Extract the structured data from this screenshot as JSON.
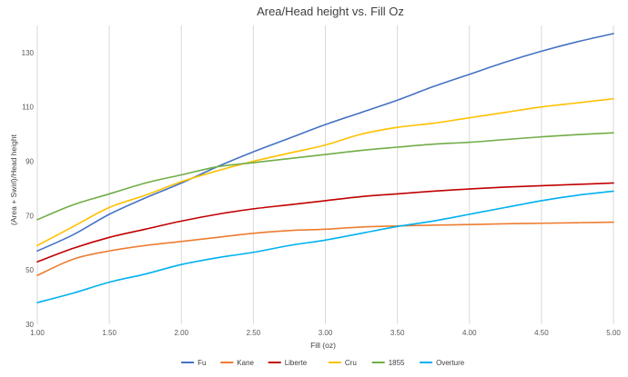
{
  "chart_data": {
    "type": "line",
    "title": "Area/Head height vs. Fill Oz",
    "xlabel": "Fill (oz)",
    "ylabel": "(Area + Swirl)/Head height",
    "xlim": [
      1.0,
      5.0
    ],
    "ylim": [
      30,
      140
    ],
    "x_ticks": [
      "1.00",
      "1.50",
      "2.00",
      "2.50",
      "3.00",
      "3.50",
      "4.00",
      "4.50",
      "5.00"
    ],
    "y_ticks": [
      "30",
      "50",
      "70",
      "90",
      "110",
      "130"
    ],
    "grid": "vertical",
    "legend_position": "bottom",
    "x": [
      1.0,
      1.25,
      1.5,
      1.75,
      2.0,
      2.25,
      2.5,
      2.75,
      3.0,
      3.25,
      3.5,
      3.75,
      4.0,
      4.25,
      4.5,
      4.75,
      5.0
    ],
    "series": [
      {
        "name": "Fu",
        "color": "#4472C4",
        "values": [
          57,
          63,
          70.5,
          76.5,
          82,
          88,
          93.5,
          98.5,
          103.5,
          108,
          112.5,
          117.5,
          122,
          126.5,
          130.5,
          134,
          137
        ]
      },
      {
        "name": "Kane",
        "color": "#ED7D31",
        "values": [
          48,
          54,
          57,
          59,
          60.5,
          62,
          63.5,
          64.5,
          65,
          65.8,
          66.2,
          66.5,
          66.7,
          67,
          67.2,
          67.4,
          67.6
        ]
      },
      {
        "name": "Liberte",
        "color": "#C00000",
        "values": [
          53,
          58,
          62,
          65,
          68,
          70.5,
          72.5,
          74,
          75.5,
          77,
          78,
          79,
          79.8,
          80.5,
          81,
          81.5,
          82
        ]
      },
      {
        "name": "Cru",
        "color": "#FFC000",
        "values": [
          59,
          66,
          73,
          77.5,
          82.5,
          86.5,
          90,
          93,
          96,
          100,
          102.5,
          104,
          106,
          108,
          110,
          111.5,
          113
        ]
      },
      {
        "name": "1855",
        "color": "#70AD47",
        "values": [
          68.5,
          74,
          78,
          82,
          85,
          88,
          89.5,
          91,
          92.5,
          94,
          95.2,
          96.3,
          97,
          98,
          99,
          99.8,
          100.5
        ]
      },
      {
        "name": "Overture",
        "color": "#00B0F0",
        "values": [
          38,
          41.5,
          45.5,
          48.5,
          52,
          54.5,
          56.5,
          59,
          61,
          63.5,
          66,
          68,
          70.5,
          73,
          75.5,
          77.5,
          79
        ]
      }
    ]
  }
}
